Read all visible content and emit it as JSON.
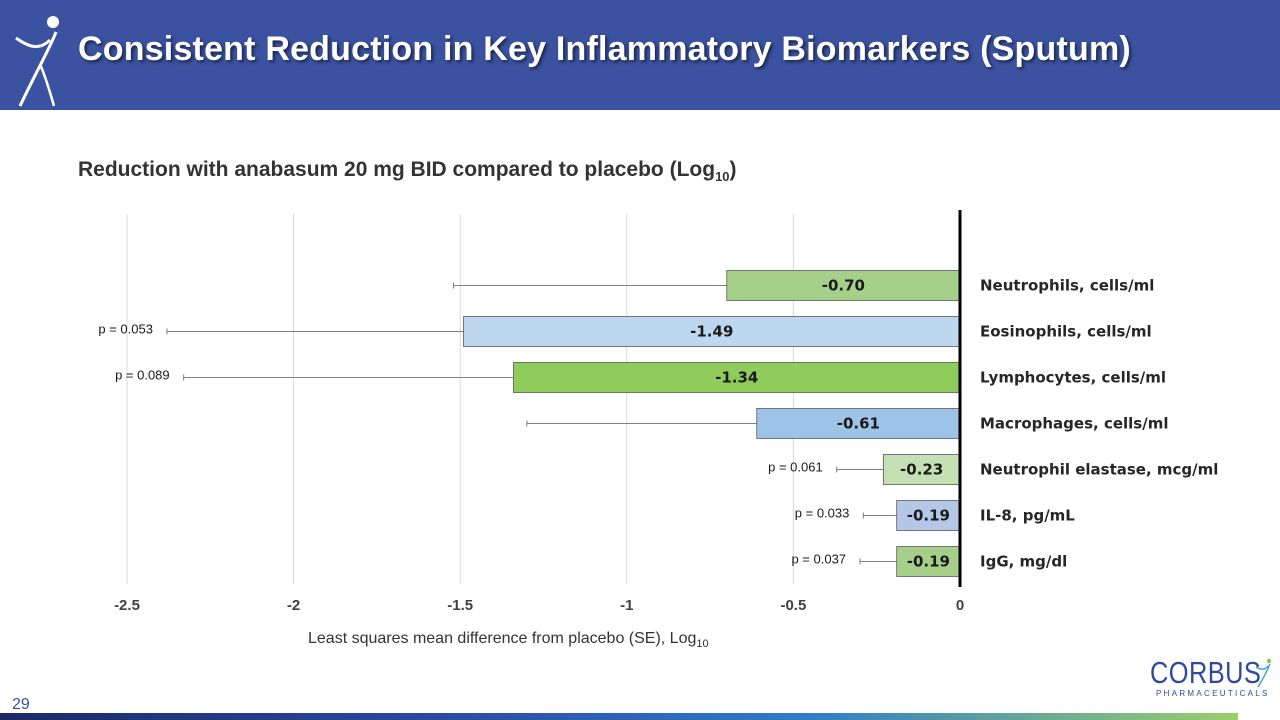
{
  "slide": {
    "title": "Consistent Reduction in Key Inflammatory Biomarkers (Sputum)",
    "subtitle_main": "Reduction with anabasum 20 mg BID compared to placebo (Log",
    "subtitle_sub": "10",
    "subtitle_end": ")",
    "page_number": "29",
    "logo_name": "CORBUS",
    "logo_sub": "PHARMACEUTICALS",
    "header_color": "#3b52a0"
  },
  "chart_data": {
    "type": "bar",
    "orientation": "horizontal",
    "xlabel_main": "Least squares mean difference from placebo (SE), Log",
    "xlabel_sub": "10",
    "xlim": [
      -2.5,
      0
    ],
    "xticks": [
      "-2.5",
      "-2",
      "-1.5",
      "-1",
      "-0.5",
      "0"
    ],
    "xtick_values": [
      -2.5,
      -2,
      -1.5,
      -1,
      -0.5,
      0
    ],
    "grid": true,
    "categories": [
      "Neutrophils, cells/ml",
      "Eosinophils, cells/ml",
      "Lymphocytes, cells/ml",
      "Macrophages, cells/ml",
      "Neutrophil elastase, mcg/ml",
      "IL-8, pg/mL",
      "IgG, mg/dl"
    ],
    "values": [
      -0.7,
      -1.49,
      -1.34,
      -0.61,
      -0.23,
      -0.19,
      -0.19
    ],
    "value_labels": [
      "-0.70",
      "-1.49",
      "-1.34",
      "-0.61",
      "-0.23",
      "-0.19",
      "-0.19"
    ],
    "error_low": [
      -1.52,
      -2.38,
      -2.33,
      -1.3,
      -0.37,
      -0.29,
      -0.3
    ],
    "p_values": [
      "",
      "p = 0.053",
      "p = 0.089",
      "",
      "p = 0.061",
      "p = 0.033",
      "p = 0.037"
    ],
    "colors": [
      "#a6d08a",
      "#bdd7ee",
      "#8fcc5c",
      "#9dc3e6",
      "#c5e0b4",
      "#b4c7e7",
      "#a6d08a"
    ]
  }
}
